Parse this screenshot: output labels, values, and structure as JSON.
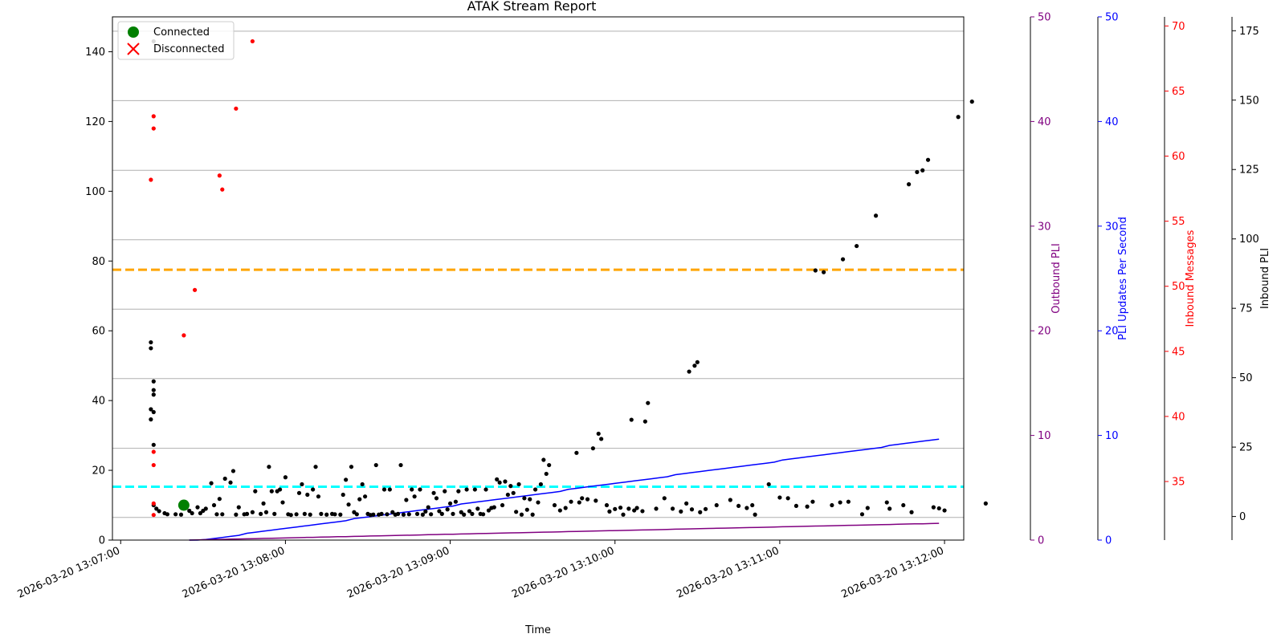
{
  "chart_data": {
    "type": "scatter",
    "title": "ATAK Stream Report",
    "xlabel": "Time",
    "x_ticks": [
      "2026-03-20 13:07:00",
      "2026-03-20 13:08:00",
      "2026-03-20 13:09:00",
      "2026-03-20 13:10:00",
      "2026-03-20 13:11:00",
      "2026-03-20 13:12:00"
    ],
    "xlim_seconds_from_1307": [
      -3,
      307
    ],
    "ylim": [
      0,
      150
    ],
    "y_ticks": [
      "0",
      "20",
      "40",
      "60",
      "80",
      "100",
      "120",
      "140"
    ],
    "grid_lines_y": [
      6.5,
      26.3,
      46.3,
      66.2,
      86.1,
      106.0,
      126.0,
      145.9
    ],
    "legend": {
      "position": "upper left",
      "items": [
        {
          "label": "Connected",
          "marker": "circle",
          "color": "#008000"
        },
        {
          "label": "Disconnected",
          "marker": "x",
          "color": "#ff0000"
        }
      ]
    },
    "reference_lines": [
      {
        "y": 77.5,
        "color": "#ffa500",
        "style": "dashed"
      },
      {
        "y": 15.3,
        "color": "#00ffff",
        "style": "dashed"
      }
    ],
    "connected_events": [
      {
        "t": 23,
        "y": 10
      }
    ],
    "disconnected_events": [],
    "black_points": [
      [
        12,
        143
      ],
      [
        11,
        56.7
      ],
      [
        11,
        55
      ],
      [
        12,
        45.5
      ],
      [
        12,
        43
      ],
      [
        12,
        41.7
      ],
      [
        11,
        37.5
      ],
      [
        12,
        36.7
      ],
      [
        11,
        34.6
      ],
      [
        12,
        27.3
      ],
      [
        12,
        10
      ],
      [
        13,
        9
      ],
      [
        14,
        8.3
      ],
      [
        16,
        7.7
      ],
      [
        17,
        7.4
      ],
      [
        20,
        7.4
      ],
      [
        22,
        7.3
      ],
      [
        25,
        8.4
      ],
      [
        26,
        7.7
      ],
      [
        28,
        9.4
      ],
      [
        29,
        7.7
      ],
      [
        30,
        8.4
      ],
      [
        31,
        9
      ],
      [
        33,
        16.3
      ],
      [
        34,
        10
      ],
      [
        35,
        7.4
      ],
      [
        36,
        11.8
      ],
      [
        37,
        7.4
      ],
      [
        38,
        17.6
      ],
      [
        40,
        16.5
      ],
      [
        41,
        19.8
      ],
      [
        42,
        7.3
      ],
      [
        43,
        9.4
      ],
      [
        45,
        7.4
      ],
      [
        46,
        7.5
      ],
      [
        48,
        8
      ],
      [
        49,
        14
      ],
      [
        51,
        7.5
      ],
      [
        52,
        10.5
      ],
      [
        53,
        8
      ],
      [
        54,
        21
      ],
      [
        55,
        14
      ],
      [
        56,
        7.5
      ],
      [
        57,
        14
      ],
      [
        58,
        14.5
      ],
      [
        59,
        10.8
      ],
      [
        60,
        18
      ],
      [
        61,
        7.4
      ],
      [
        62,
        7.2
      ],
      [
        64,
        7.4
      ],
      [
        65,
        13.5
      ],
      [
        66,
        16
      ],
      [
        67,
        7.5
      ],
      [
        68,
        13
      ],
      [
        69,
        7.3
      ],
      [
        70,
        14.5
      ],
      [
        71,
        21
      ],
      [
        72,
        12.5
      ],
      [
        73,
        7.5
      ],
      [
        75,
        7.3
      ],
      [
        77,
        7.5
      ],
      [
        78,
        7.4
      ],
      [
        80,
        7.3
      ],
      [
        81,
        13
      ],
      [
        82,
        17.3
      ],
      [
        83,
        10.2
      ],
      [
        84,
        21
      ],
      [
        85,
        8
      ],
      [
        86,
        7.4
      ],
      [
        87,
        11.7
      ],
      [
        88,
        16
      ],
      [
        89,
        12.5
      ],
      [
        90,
        7.5
      ],
      [
        91,
        7.2
      ],
      [
        92,
        7.3
      ],
      [
        93,
        21.5
      ],
      [
        94,
        7.3
      ],
      [
        95,
        7.5
      ],
      [
        96,
        14.5
      ],
      [
        97,
        7.4
      ],
      [
        98,
        14.5
      ],
      [
        99,
        8
      ],
      [
        100,
        7.3
      ],
      [
        101,
        7.5
      ],
      [
        102,
        21.5
      ],
      [
        103,
        7.3
      ],
      [
        104,
        11.5
      ],
      [
        105,
        7.4
      ],
      [
        106,
        14.5
      ],
      [
        107,
        12.5
      ],
      [
        108,
        7.5
      ],
      [
        109,
        14.5
      ],
      [
        110,
        7.3
      ],
      [
        111,
        8.2
      ],
      [
        112,
        9.4
      ],
      [
        113,
        7.4
      ],
      [
        114,
        13.5
      ],
      [
        115,
        12
      ],
      [
        116,
        8.3
      ],
      [
        117,
        7.5
      ],
      [
        118,
        14
      ],
      [
        119,
        8.8
      ],
      [
        120,
        10.5
      ],
      [
        121,
        7.5
      ],
      [
        122,
        11
      ],
      [
        123,
        14
      ],
      [
        124,
        8
      ],
      [
        125,
        7.3
      ],
      [
        126,
        14.5
      ],
      [
        127,
        8.3
      ],
      [
        128,
        7.5
      ],
      [
        129,
        14.5
      ],
      [
        130,
        9
      ],
      [
        131,
        7.5
      ],
      [
        132,
        7.4
      ],
      [
        133,
        14.5
      ],
      [
        134,
        8.5
      ],
      [
        135,
        9.2
      ],
      [
        136,
        9.4
      ],
      [
        137,
        17.4
      ],
      [
        138,
        16.5
      ],
      [
        139,
        10
      ],
      [
        140,
        16.8
      ],
      [
        141,
        13
      ],
      [
        142,
        15.5
      ],
      [
        143,
        13.5
      ],
      [
        144,
        8.1
      ],
      [
        145,
        16
      ],
      [
        146,
        7.3
      ],
      [
        147,
        12
      ],
      [
        148,
        8.7
      ],
      [
        149,
        11.7
      ],
      [
        150,
        7.3
      ],
      [
        151,
        14.5
      ],
      [
        152,
        10.8
      ],
      [
        153,
        16
      ],
      [
        154,
        23
      ],
      [
        155,
        19
      ],
      [
        156,
        21.5
      ],
      [
        158,
        10
      ],
      [
        160,
        8.5
      ],
      [
        162,
        9.2
      ],
      [
        164,
        11
      ],
      [
        166,
        25
      ],
      [
        167,
        10.8
      ],
      [
        168,
        12
      ],
      [
        170,
        11.7
      ],
      [
        172,
        26.3
      ],
      [
        173,
        11.3
      ],
      [
        174,
        30.5
      ],
      [
        175,
        29
      ],
      [
        177,
        10
      ],
      [
        178,
        8.2
      ],
      [
        180,
        8.9
      ],
      [
        182,
        9.3
      ],
      [
        183,
        7.3
      ],
      [
        185,
        9
      ],
      [
        186,
        34.5
      ],
      [
        187,
        8.5
      ],
      [
        188,
        9.2
      ],
      [
        190,
        8.3
      ],
      [
        191,
        34
      ],
      [
        192,
        39.3
      ],
      [
        195,
        9
      ],
      [
        198,
        12
      ],
      [
        201,
        9
      ],
      [
        204,
        8.2
      ],
      [
        206,
        10.5
      ],
      [
        207,
        48.3
      ],
      [
        208,
        8.8
      ],
      [
        209,
        50
      ],
      [
        210,
        51
      ],
      [
        211,
        8
      ],
      [
        213,
        8.9
      ],
      [
        217,
        10
      ],
      [
        222,
        11.5
      ],
      [
        225,
        9.8
      ],
      [
        228,
        9.2
      ],
      [
        230,
        10
      ],
      [
        231,
        7.3
      ],
      [
        236,
        16
      ],
      [
        240,
        12.2
      ],
      [
        243,
        12
      ],
      [
        246,
        9.8
      ],
      [
        250,
        9.6
      ],
      [
        252,
        11
      ],
      [
        253,
        77.3
      ],
      [
        256,
        76.8
      ],
      [
        259,
        10
      ],
      [
        262,
        10.8
      ],
      [
        263,
        80.5
      ],
      [
        265,
        11
      ],
      [
        268,
        84.3
      ],
      [
        270,
        7.4
      ],
      [
        272,
        9.2
      ],
      [
        275,
        93
      ],
      [
        279,
        10.8
      ],
      [
        280,
        9
      ],
      [
        285,
        10
      ],
      [
        287,
        102
      ],
      [
        288,
        8
      ],
      [
        290,
        105.5
      ],
      [
        292,
        106
      ],
      [
        294,
        109
      ],
      [
        296,
        9.4
      ],
      [
        298,
        9.1
      ],
      [
        300,
        8.5
      ],
      [
        305,
        121.3
      ],
      [
        310,
        125.7
      ],
      [
        315,
        10.5
      ]
    ],
    "red_points": [
      [
        12,
        121.5
      ],
      [
        12,
        118
      ],
      [
        11,
        103.3
      ],
      [
        23,
        58.7
      ],
      [
        27,
        71.7
      ],
      [
        36,
        104.5
      ],
      [
        37,
        100.5
      ],
      [
        42,
        123.7
      ],
      [
        48,
        143
      ],
      [
        12,
        25.3
      ],
      [
        12,
        21.5
      ],
      [
        12,
        10.5
      ],
      [
        12,
        7.2
      ]
    ],
    "series": [
      {
        "name": "PLI Updates Per Second",
        "axis": "PLI Updates Per Second",
        "color": "#0000ff"
      },
      {
        "name": "Outbound PLI",
        "axis": "Outbound PLI",
        "color": "#800080"
      }
    ],
    "right_axes": [
      {
        "label": "Outbound PLI",
        "color": "#800080",
        "ticks": [
          "0",
          "10",
          "20",
          "30",
          "40",
          "50"
        ],
        "range": [
          0,
          50
        ]
      },
      {
        "label": "PLI Updates Per Second",
        "color": "#0000ff",
        "ticks": [
          "0",
          "10",
          "20",
          "30",
          "40",
          "50"
        ],
        "range": [
          0,
          50
        ]
      },
      {
        "label": "Inbound Messages",
        "color": "#ff0000",
        "ticks": [
          "35",
          "40",
          "45",
          "50",
          "55",
          "60",
          "65",
          "70"
        ],
        "range": [
          30.5,
          70.7
        ]
      },
      {
        "label": "Inbound PLI",
        "color": "#000000",
        "ticks": [
          "0",
          "25",
          "50",
          "75",
          "100",
          "125",
          "150",
          "175"
        ],
        "range": [
          -8.5,
          180
        ]
      }
    ]
  }
}
